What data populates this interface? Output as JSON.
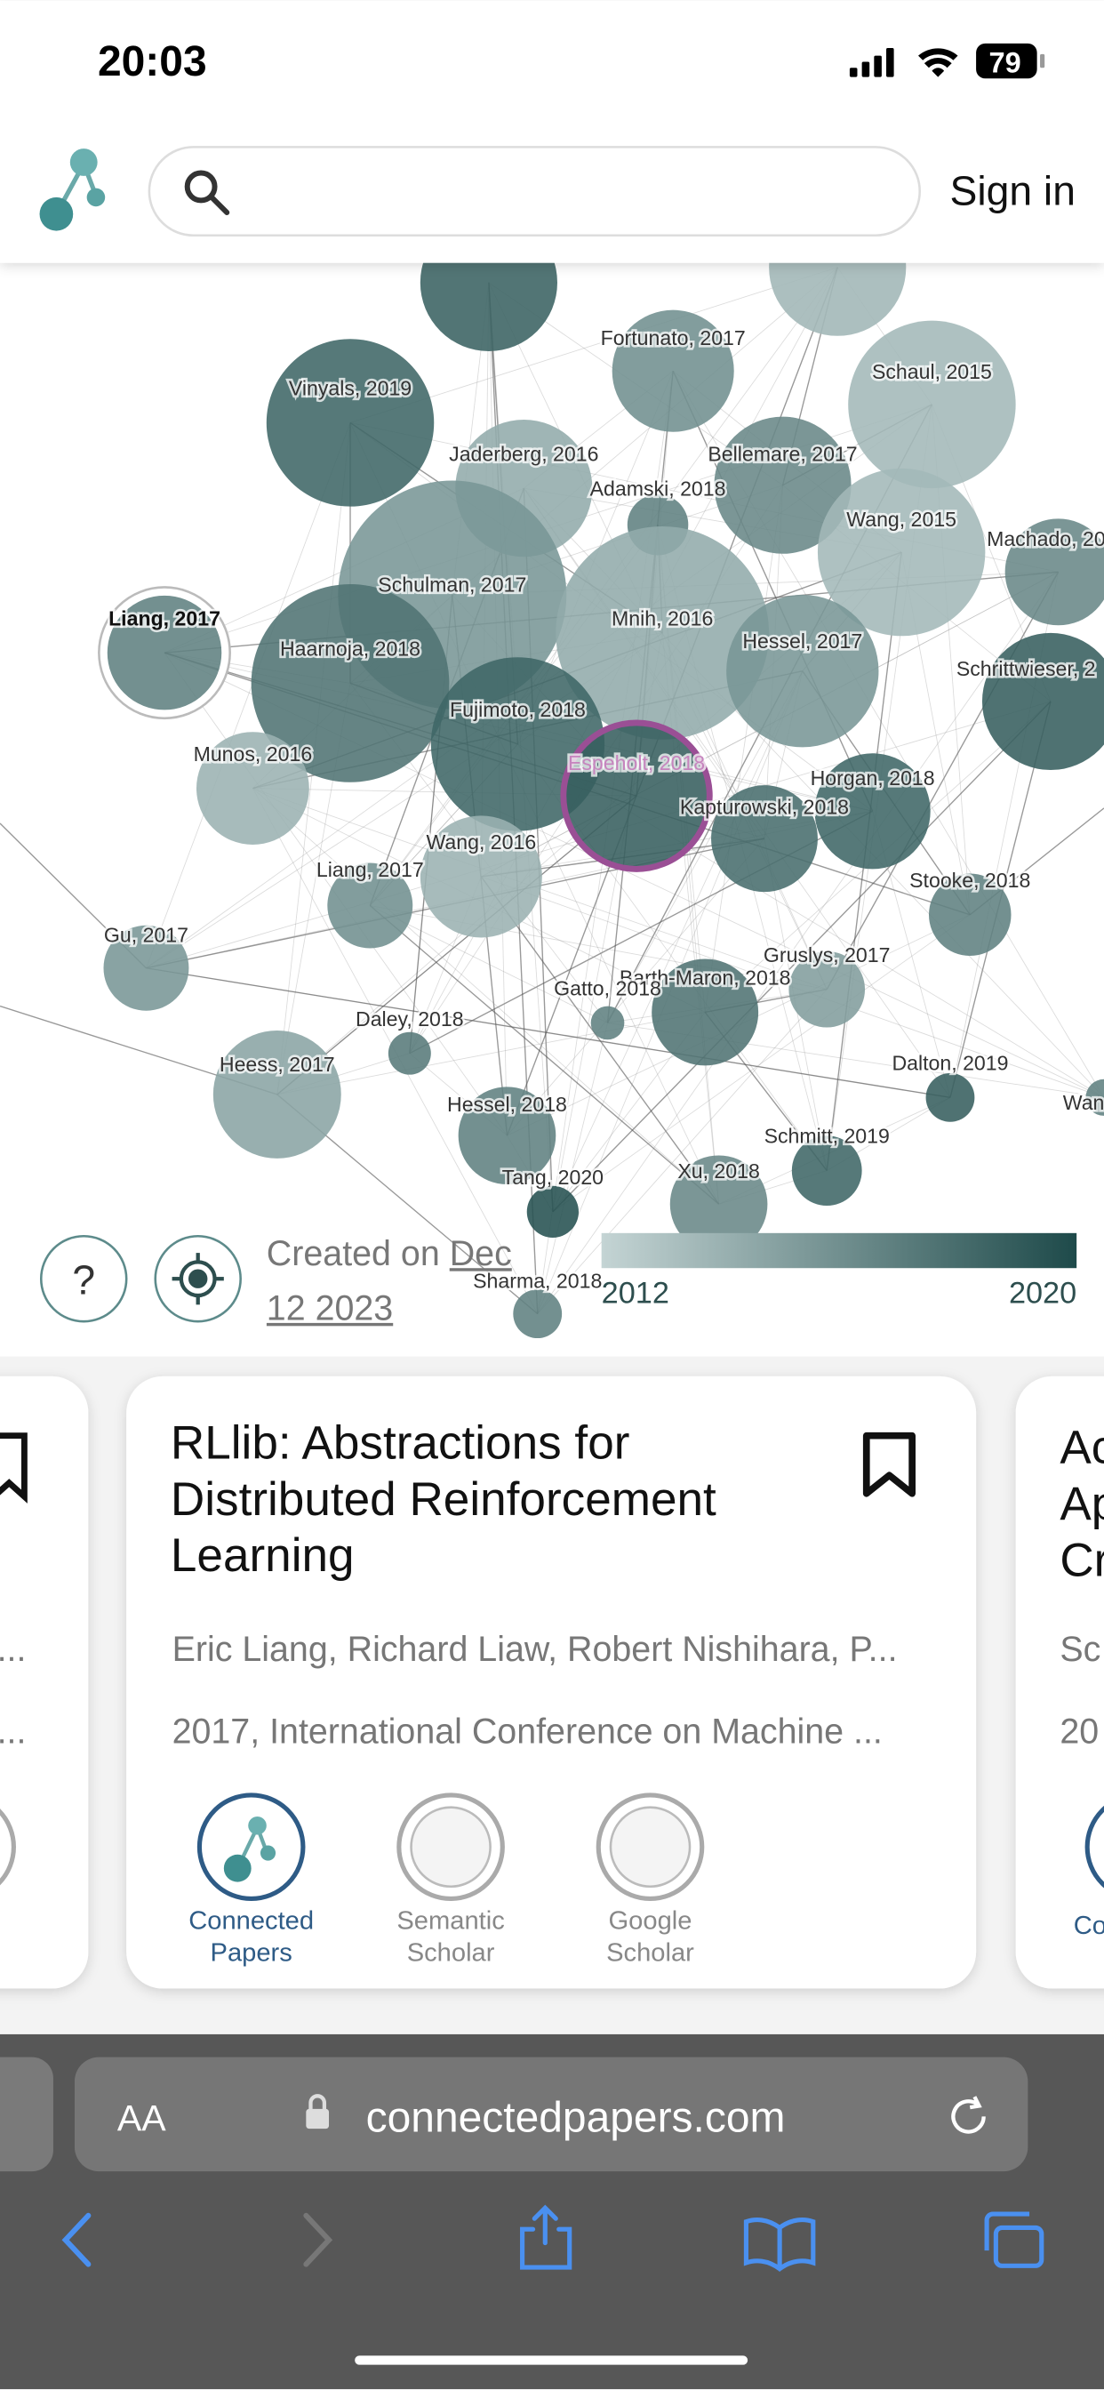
{
  "status": {
    "time": "20:03",
    "battery": "79"
  },
  "header": {
    "sign_in": "Sign in"
  },
  "graph": {
    "nodes": [
      {
        "label": "Vinyals, 2019"
      },
      {
        "label": "Fortunato, 2017"
      },
      {
        "label": "Schaul, 2015"
      },
      {
        "label": "Jaderberg, 2016"
      },
      {
        "label": "Bellemare, 2017"
      },
      {
        "label": "Adamski, 2018"
      },
      {
        "label": "Wang, 2015"
      },
      {
        "label": "Machado, 20"
      },
      {
        "label": "Schulman, 2017"
      },
      {
        "label": "Mnih, 2016"
      },
      {
        "label": "Liang, 2017"
      },
      {
        "label": "Haarnoja, 2018"
      },
      {
        "label": "Hessel, 2017"
      },
      {
        "label": "Schrittwieser, 2"
      },
      {
        "label": "Fujimoto, 2018"
      },
      {
        "label": "Espeholt, 2018"
      },
      {
        "label": "Munos, 2016"
      },
      {
        "label": "Kapturowski, 2018"
      },
      {
        "label": "Horgan, 2018"
      },
      {
        "label": "Wang, 2016"
      },
      {
        "label": "Liang, 2017"
      },
      {
        "label": "Stooke, 2018"
      },
      {
        "label": "Gu, 2017"
      },
      {
        "label": "Gruslys, 2017"
      },
      {
        "label": "Barth-Maron, 2018"
      },
      {
        "label": "Gatto, 2018"
      },
      {
        "label": "Daley, 2018"
      },
      {
        "label": "Heess, 2017"
      },
      {
        "label": "Dalton, 2019"
      },
      {
        "label": "Wan"
      },
      {
        "label": "Hessel, 2018"
      },
      {
        "label": "Schmitt, 2019"
      },
      {
        "label": "Tang, 2020"
      },
      {
        "label": "Xu, 2018"
      },
      {
        "label": "Sharma, 2018"
      }
    ],
    "created_on": "Created on",
    "date": "Dec 12 2023",
    "legend": {
      "start": "2012",
      "end": "2020"
    }
  },
  "left_card": {
    "authors": "...",
    "venue": "..."
  },
  "card": {
    "title": "RLlib: Abstractions for Distributed Reinforcement Learning",
    "authors": "Eric Liang, Richard Liaw, Robert Nishihara, P...",
    "venue": "2017, International Conference on Machine ...",
    "links": [
      "Connected Papers",
      "Semantic Scholar",
      "Google Scholar"
    ]
  },
  "right_card": {
    "title_lines": [
      "Ac",
      "Ap",
      "Cr"
    ],
    "authors": "Sc",
    "venue": "20",
    "link": "Co"
  },
  "browser": {
    "text_size": "AA",
    "url": "connectedpapers.com"
  }
}
